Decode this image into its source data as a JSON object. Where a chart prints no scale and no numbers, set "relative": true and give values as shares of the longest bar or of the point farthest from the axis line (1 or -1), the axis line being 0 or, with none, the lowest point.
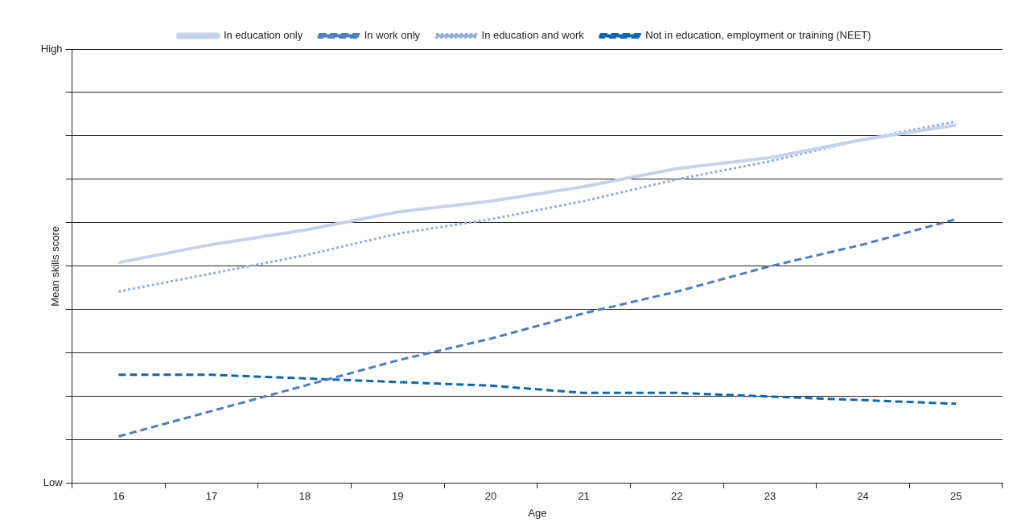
{
  "chart_data": {
    "type": "line",
    "xlabel": "Age",
    "ylabel": "Mean skills score",
    "categories": [
      "16",
      "17",
      "18",
      "19",
      "20",
      "21",
      "22",
      "23",
      "24",
      "25"
    ],
    "relative": true,
    "annotations": [
      "High",
      "Low"
    ],
    "grid": "y",
    "legend": "top",
    "marker": "none",
    "series": [
      {
        "name": "In education only",
        "color": "#c5d3ea",
        "line_style": "solid",
        "values": [
          0.61,
          0.66,
          0.7,
          0.75,
          0.78,
          0.82,
          0.87,
          0.9,
          0.95,
          0.99
        ]
      },
      {
        "name": "In work only",
        "color": "#4a7fc1",
        "line_style": "dashed",
        "values": [
          0.13,
          0.2,
          0.27,
          0.34,
          0.4,
          0.47,
          0.53,
          0.6,
          0.66,
          0.73
        ]
      },
      {
        "name": "In education and work",
        "color": "#91aedb",
        "line_style": "dotted",
        "values": [
          0.53,
          0.58,
          0.63,
          0.69,
          0.73,
          0.78,
          0.84,
          0.89,
          0.95,
          1
        ]
      },
      {
        "name": "Not in education, employment or training (NEET)",
        "color": "#0b68b0",
        "line_style": "dashed",
        "values": [
          0.3,
          0.3,
          0.29,
          0.28,
          0.27,
          0.25,
          0.25,
          0.24,
          0.23,
          0.22
        ]
      }
    ]
  }
}
